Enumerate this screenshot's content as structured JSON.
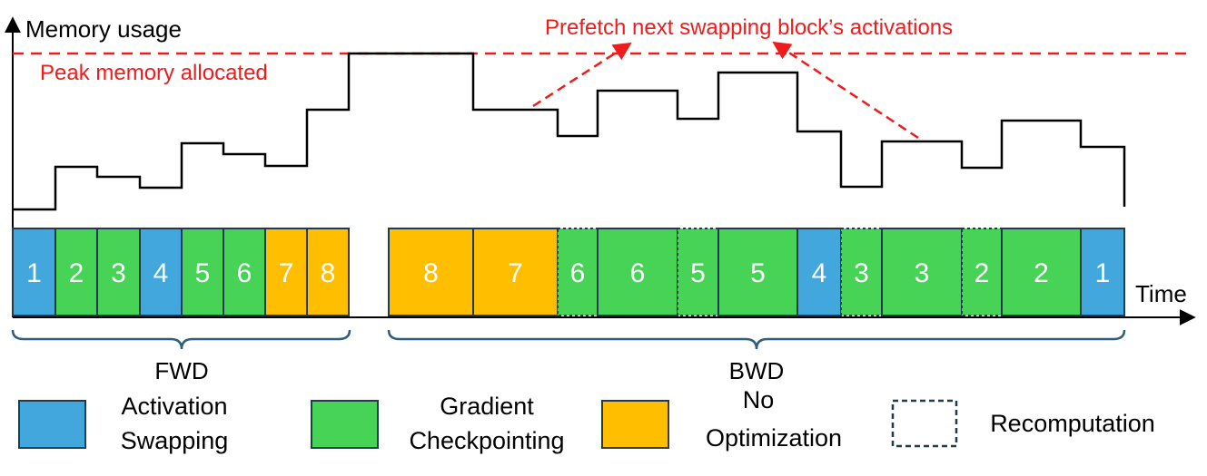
{
  "labels": {
    "y_axis": "Memory usage",
    "x_axis": "Time",
    "peak": "Peak memory allocated",
    "prefetch": "Prefetch next swapping block’s activations",
    "fwd": "FWD",
    "bwd": "BWD"
  },
  "colors": {
    "swap": "#41a7dc",
    "ckpt": "#46d356",
    "noopt": "#ffbf00",
    "border": "#1f3b4d",
    "annotation": "#ee1c1c",
    "curve": "#000000"
  },
  "fwd_blocks": [
    {
      "label": "1",
      "kind": "swap"
    },
    {
      "label": "2",
      "kind": "ckpt"
    },
    {
      "label": "3",
      "kind": "ckpt"
    },
    {
      "label": "4",
      "kind": "swap"
    },
    {
      "label": "5",
      "kind": "ckpt"
    },
    {
      "label": "6",
      "kind": "ckpt"
    },
    {
      "label": "7",
      "kind": "noopt"
    },
    {
      "label": "8",
      "kind": "noopt"
    }
  ],
  "bwd_blocks": [
    {
      "label": "8",
      "kind": "noopt",
      "recompute": false
    },
    {
      "label": "7",
      "kind": "noopt",
      "recompute": false
    },
    {
      "label": "6",
      "kind": "ckpt",
      "recompute": true
    },
    {
      "label": "6",
      "kind": "ckpt",
      "recompute": false
    },
    {
      "label": "5",
      "kind": "ckpt",
      "recompute": true
    },
    {
      "label": "5",
      "kind": "ckpt",
      "recompute": false
    },
    {
      "label": "4",
      "kind": "swap",
      "recompute": false
    },
    {
      "label": "3",
      "kind": "ckpt",
      "recompute": true
    },
    {
      "label": "3",
      "kind": "ckpt",
      "recompute": false
    },
    {
      "label": "2",
      "kind": "ckpt",
      "recompute": true
    },
    {
      "label": "2",
      "kind": "ckpt",
      "recompute": false
    },
    {
      "label": "1",
      "kind": "swap",
      "recompute": false
    }
  ],
  "legend": {
    "swap_line1": "Activation",
    "swap_line2": "Swapping",
    "ckpt_line1": "Gradient",
    "ckpt_line2": "Checkpointing",
    "noopt_line1": "No",
    "noopt_line2": "Optimization",
    "recompute": "Recomputation"
  }
}
